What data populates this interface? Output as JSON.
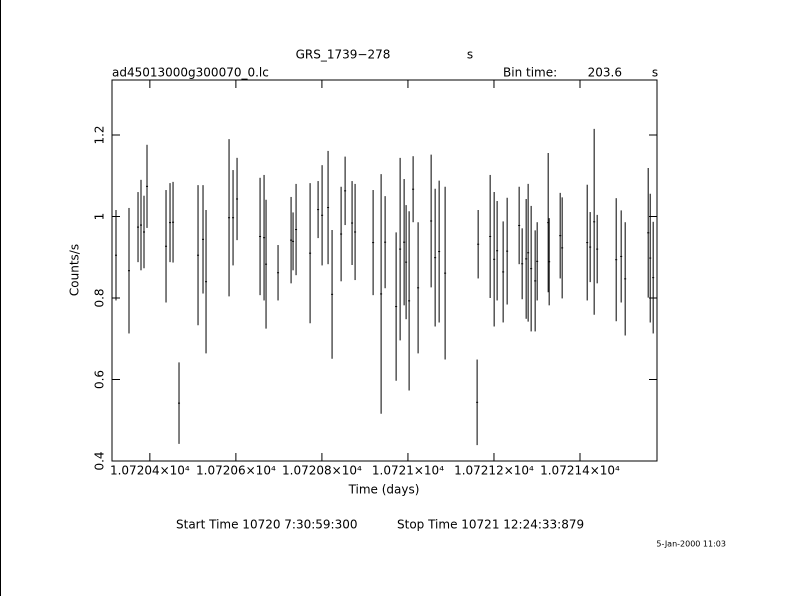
{
  "chart_data": {
    "type": "errorbar",
    "title": "GRS_1739−278",
    "title_unit": "s",
    "file_name": "ad45013000g300070_0.lc",
    "bin_time_label": "Bin time:",
    "bin_time": 203.6,
    "bin_time_unit": "s",
    "x_label": "Time (days)",
    "y_label": "Counts/s",
    "start_time": "Start Time 10720  7:30:59:300",
    "stop_time": "Stop Time 10721 12:24:33:879",
    "date": "5-Jan-2000 11:03",
    "color": "#000000",
    "xlim": [
      10720.312,
      10721.579
    ],
    "ylim": [
      0.4,
      1.335
    ],
    "xticks": [
      {
        "value": 10720.4,
        "label": "1.07204×10⁴"
      },
      {
        "value": 10720.6,
        "label": "1.07206×10⁴"
      },
      {
        "value": 10720.8,
        "label": "1.07208×10⁴"
      },
      {
        "value": 10721.0,
        "label": "1.0721×10⁴"
      },
      {
        "value": 10721.2,
        "label": "1.07212×10⁴"
      },
      {
        "value": 10721.4,
        "label": "1.07214×10⁴"
      }
    ],
    "yticks": [
      0.4,
      0.6,
      0.8,
      1,
      1.2
    ],
    "x": [
      10720.3213,
      10720.3515,
      10720.3725,
      10720.3794,
      10720.3864,
      10720.3934,
      10720.4376,
      10720.4469,
      10720.4539,
      10720.4678,
      10720.512,
      10720.5236,
      10720.5306,
      10720.5841,
      10720.5934,
      10720.6027,
      10720.6562,
      10720.6655,
      10720.6701,
      10720.698,
      10720.7283,
      10720.7329,
      10720.7399,
      10720.7725,
      10720.7911,
      10720.8004,
      10720.8143,
      10720.8236,
      10720.8446,
      10720.8539,
      10720.8701,
      10720.8771,
      10720.919,
      10720.9376,
      10720.9469,
      10720.9725,
      10720.9818,
      10720.9911,
      10720.9957,
      10721.0027,
      10721.012,
      10721.0236,
      10721.0539,
      10721.0632,
      10721.0725,
      10721.0864,
      10721.1608,
      10721.1632,
      10721.1911,
      10721.2004,
      10721.2073,
      10721.2213,
      10721.2306,
      10721.2585,
      10721.2655,
      10721.2748,
      10721.2794,
      10721.2864,
      10721.2957,
      10721.3004,
      10721.326,
      10721.3283,
      10721.3539,
      10721.3585,
      10721.4167,
      10721.4236,
      10721.4329,
      10721.4399,
      10721.4841,
      10721.4957,
      10721.505,
      10721.5585,
      10721.5632,
      10721.5701
    ],
    "values": [
      0.905,
      0.867,
      0.974,
      0.979,
      0.962,
      1.074,
      0.927,
      0.985,
      0.986,
      0.542,
      0.905,
      0.944,
      0.84,
      0.997,
      0.997,
      1.043,
      0.951,
      0.948,
      0.883,
      0.862,
      0.942,
      0.939,
      0.968,
      0.91,
      1.017,
      1.003,
      1.022,
      0.809,
      0.957,
      1.063,
      0.984,
      0.962,
      0.936,
      0.81,
      0.937,
      0.779,
      0.92,
      0.937,
      0.888,
      0.793,
      1.067,
      0.825,
      0.989,
      0.899,
      0.914,
      0.861,
      0.544,
      0.932,
      0.951,
      0.895,
      0.916,
      0.864,
      0.915,
      0.978,
      0.884,
      0.896,
      0.911,
      0.872,
      0.842,
      0.89,
      0.985,
      0.889,
      0.953,
      0.923,
      0.936,
      0.925,
      0.987,
      0.92,
      0.894,
      0.902,
      0.847,
      0.96,
      0.898,
      0.85
    ],
    "errors": [
      0.111,
      0.154,
      0.086,
      0.111,
      0.089,
      0.102,
      0.138,
      0.097,
      0.099,
      0.1,
      0.172,
      0.133,
      0.176,
      0.193,
      0.117,
      0.101,
      0.144,
      0.154,
      0.158,
      0.068,
      0.106,
      0.071,
      0.112,
      0.172,
      0.07,
      0.123,
      0.139,
      0.158,
      0.116,
      0.084,
      0.103,
      0.118,
      0.129,
      0.294,
      0.113,
      0.182,
      0.224,
      0.155,
      0.14,
      0.22,
      0.081,
      0.161,
      0.163,
      0.169,
      0.174,
      0.212,
      0.105,
      0.084,
      0.151,
      0.165,
      0.122,
      0.124,
      0.131,
      0.095,
      0.087,
      0.147,
      0.169,
      0.154,
      0.124,
      0.096,
      0.171,
      0.107,
      0.105,
      0.124,
      0.142,
      0.086,
      0.228,
      0.084,
      0.151,
      0.113,
      0.139,
      0.159,
      0.158,
      0.137
    ]
  }
}
